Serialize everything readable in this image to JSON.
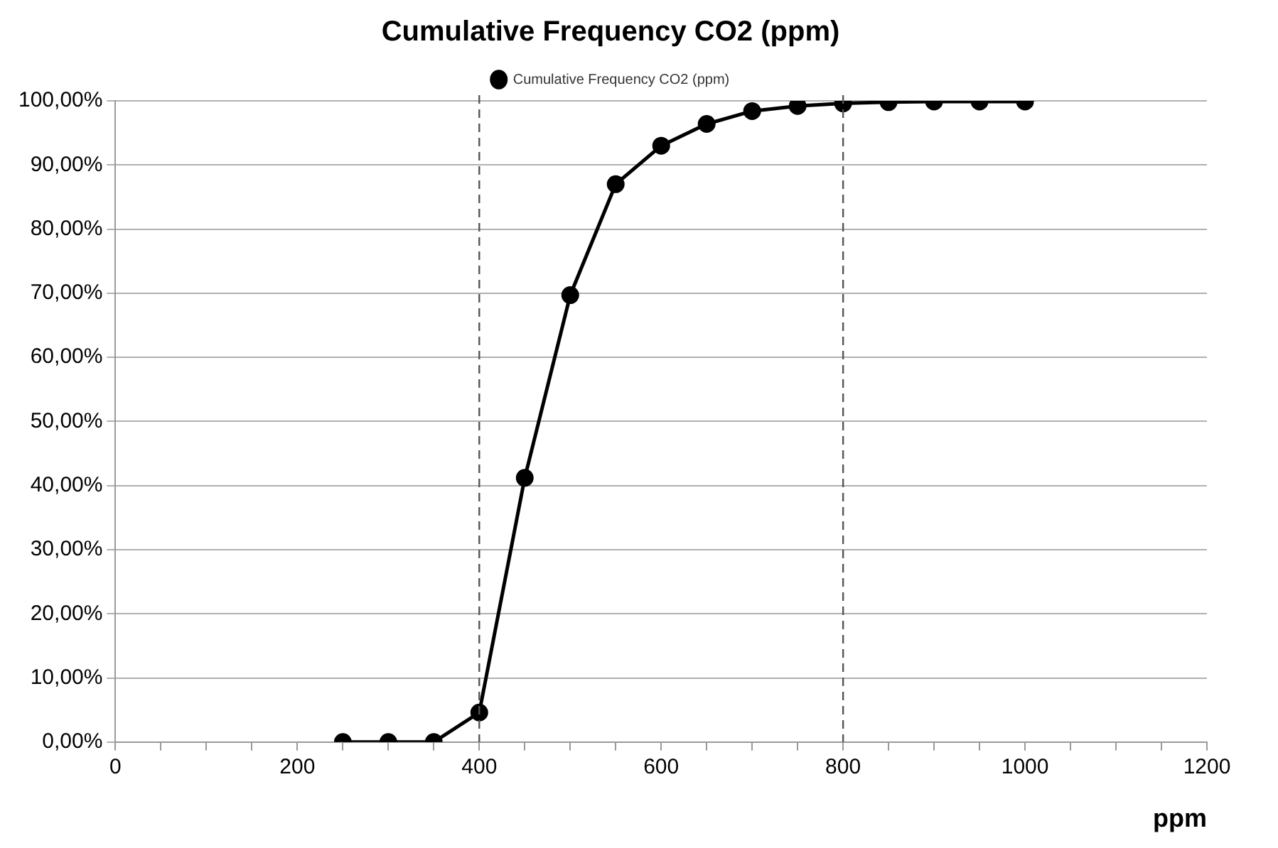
{
  "chart_data": {
    "type": "line",
    "title": "Cumulative Frequency CO2 (ppm)",
    "xlabel": "ppm",
    "x": [
      250,
      300,
      350,
      400,
      450,
      500,
      550,
      600,
      650,
      700,
      750,
      800,
      850,
      900,
      950,
      1000
    ],
    "series": [
      {
        "name": "Cumulative Frequency CO2 (ppm)",
        "color": "#000000",
        "values": [
          0,
          0,
          0,
          4.6,
          41.2,
          69.7,
          87.0,
          93.0,
          96.4,
          98.4,
          99.2,
          99.6,
          99.8,
          99.9,
          99.9,
          99.9
        ]
      }
    ],
    "xlim": [
      0,
      1200
    ],
    "xticks": [
      0,
      {
        "value": 50,
        "label": null
      },
      {
        "value": 100,
        "label": null
      },
      {
        "value": 150,
        "label": null
      },
      200,
      {
        "value": 250,
        "label": null
      },
      {
        "value": 300,
        "label": null
      },
      {
        "value": 350,
        "label": null
      },
      400,
      {
        "value": 450,
        "label": null
      },
      {
        "value": 500,
        "label": null
      },
      {
        "value": 550,
        "label": null
      },
      600,
      {
        "value": 650,
        "label": null
      },
      {
        "value": 700,
        "label": null
      },
      {
        "value": 750,
        "label": null
      },
      800,
      {
        "value": 850,
        "label": null
      },
      {
        "value": 900,
        "label": null
      },
      {
        "value": 950,
        "label": null
      },
      1000,
      {
        "value": 1050,
        "label": null
      },
      {
        "value": 1100,
        "label": null
      },
      {
        "value": 1150,
        "label": null
      },
      1200
    ],
    "ylim": [
      0,
      100
    ],
    "yticks": [
      {
        "value": 0,
        "label": "0,00%"
      },
      {
        "value": 10,
        "label": "10,00%"
      },
      {
        "value": 20,
        "label": "20,00%"
      },
      {
        "value": 30,
        "label": "30,00%"
      },
      {
        "value": 40,
        "label": "40,00%"
      },
      {
        "value": 50,
        "label": "50,00%"
      },
      {
        "value": 60,
        "label": "60,00%"
      },
      {
        "value": 70,
        "label": "70,00%"
      },
      {
        "value": 80,
        "label": "80,00%"
      },
      {
        "value": 90,
        "label": "90,00%"
      },
      {
        "value": 100,
        "label": "100,00%"
      }
    ],
    "ref_lines": [
      {
        "axis": "x",
        "value": 400,
        "color": "#555555",
        "line_style": "dashed"
      },
      {
        "axis": "x",
        "value": 800,
        "color": "#555555",
        "line_style": "dashed"
      }
    ],
    "grid": "y",
    "legend": "top",
    "marker": "circle",
    "line_style": "solid"
  }
}
